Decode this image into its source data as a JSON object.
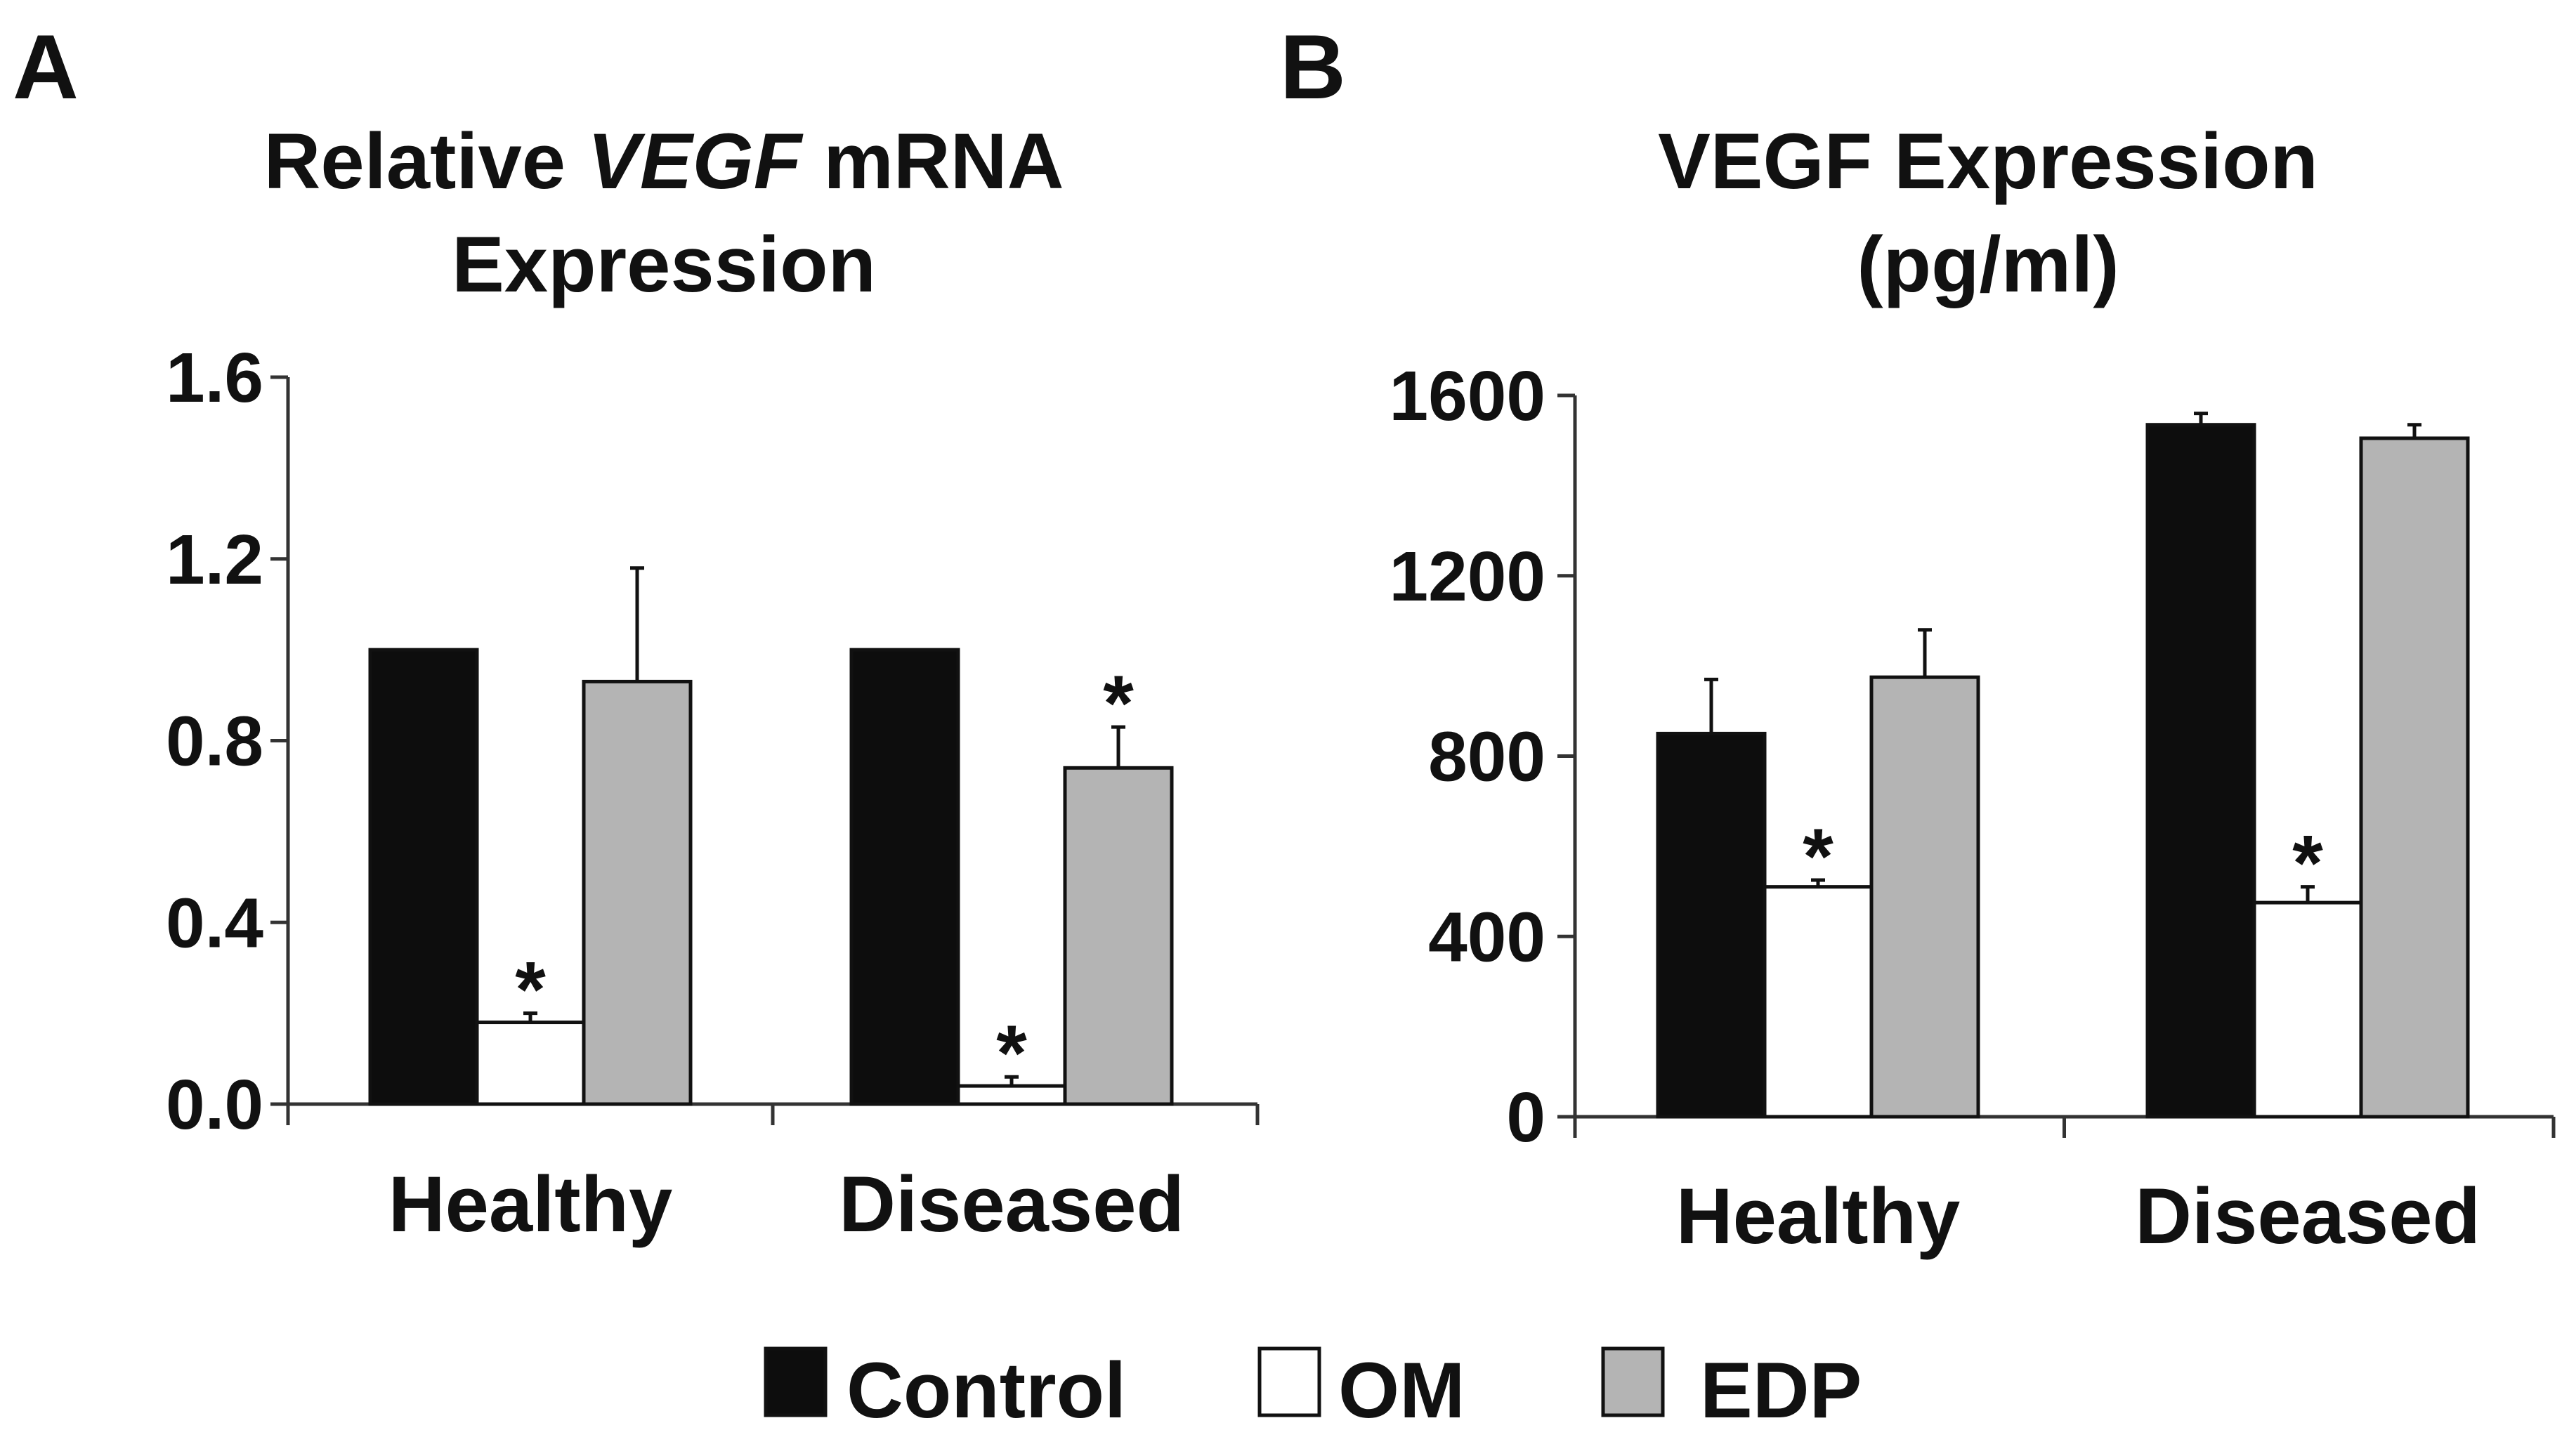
{
  "legend": {
    "items": [
      {
        "label": "Control",
        "color": "#0d0d0d"
      },
      {
        "label": "OM",
        "color": "#ffffff"
      },
      {
        "label": "EDP",
        "color": "#b4b4b4"
      }
    ]
  },
  "chart_data": [
    {
      "type": "bar",
      "panel": "A",
      "title_parts": [
        "Relative ",
        "VEGF",
        " mRNA"
      ],
      "title_line2": "Expression",
      "categories": [
        "Healthy",
        "Diseased"
      ],
      "series": [
        {
          "name": "Control",
          "values": [
            1.0,
            1.0
          ],
          "errors": [
            0,
            0
          ],
          "significant": [
            false,
            false
          ]
        },
        {
          "name": "OM",
          "values": [
            0.18,
            0.04
          ],
          "errors": [
            0.02,
            0.02
          ],
          "significant": [
            true,
            true
          ]
        },
        {
          "name": "EDP",
          "values": [
            0.93,
            0.74
          ],
          "errors": [
            0.25,
            0.09
          ],
          "significant": [
            false,
            true
          ]
        }
      ],
      "ylim": [
        0,
        1.6
      ],
      "yticks": [
        "0.0",
        "0.4",
        "0.8",
        "1.2",
        "1.6"
      ],
      "ytick_values": [
        0,
        0.4,
        0.8,
        1.2,
        1.6
      ],
      "significance_marker": "*"
    },
    {
      "type": "bar",
      "panel": "B",
      "title": "VEGF Expression",
      "title_line2": "(pg/ml)",
      "categories": [
        "Healthy",
        "Diseased"
      ],
      "series": [
        {
          "name": "Control",
          "values": [
            850,
            1535
          ],
          "errors": [
            120,
            25
          ],
          "significant": [
            false,
            false
          ]
        },
        {
          "name": "OM",
          "values": [
            510,
            475
          ],
          "errors": [
            15,
            35
          ],
          "significant": [
            true,
            true
          ]
        },
        {
          "name": "EDP",
          "values": [
            975,
            1505
          ],
          "errors": [
            105,
            30
          ],
          "significant": [
            false,
            false
          ]
        }
      ],
      "ylim": [
        0,
        1600
      ],
      "yticks": [
        "0",
        "400",
        "800",
        "1200",
        "1600"
      ],
      "ytick_values": [
        0,
        400,
        800,
        1200,
        1600
      ],
      "significance_marker": "*"
    }
  ]
}
